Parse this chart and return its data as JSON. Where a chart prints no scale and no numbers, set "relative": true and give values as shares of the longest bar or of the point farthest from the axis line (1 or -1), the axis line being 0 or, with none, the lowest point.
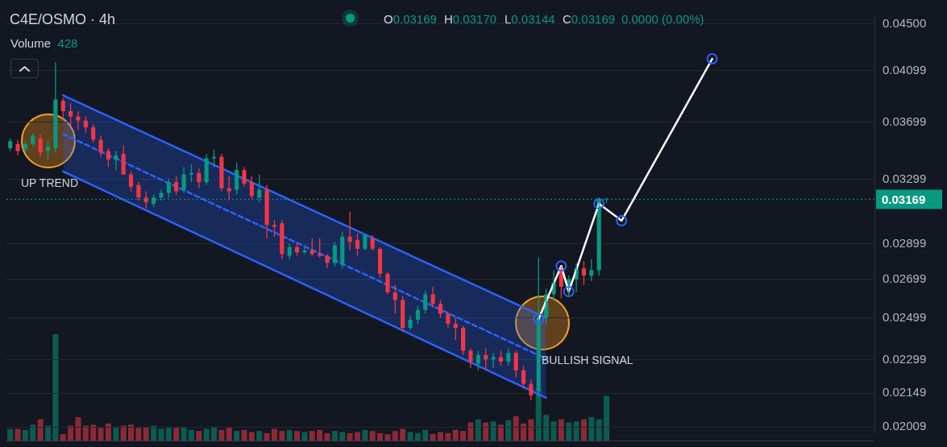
{
  "chart_data": [
    {
      "type": "candlestick",
      "title": "C4E/OSMO · 4h",
      "categories": [
        null,
        null,
        null,
        null,
        null,
        null,
        null,
        null,
        null,
        null,
        null,
        null,
        null,
        null,
        null,
        null,
        null,
        null,
        null,
        null,
        null,
        null,
        null,
        null,
        null,
        null,
        null,
        null,
        null,
        null,
        null,
        null,
        null,
        null,
        null,
        null,
        null,
        null,
        null,
        null,
        null,
        null,
        null,
        null,
        null,
        null,
        null,
        null,
        null,
        null,
        null,
        null,
        null,
        null,
        null,
        null,
        null,
        null,
        null,
        null,
        null,
        null,
        null,
        null,
        null,
        null,
        null,
        null,
        null,
        null,
        null,
        null,
        null,
        null,
        null,
        null,
        null,
        null,
        null,
        null,
        null,
        null,
        null,
        null,
        null,
        null,
        null,
        null,
        null,
        null,
        null,
        null,
        null,
        null,
        null,
        null,
        null,
        null,
        null,
        null,
        null,
        null,
        null,
        null,
        null,
        null,
        null,
        null,
        null,
        null,
        null,
        null,
        null,
        null,
        null
      ],
      "ohlc": [
        [
          0.0351,
          0.0358,
          0.0349,
          0.0356
        ],
        [
          0.0354,
          0.0357,
          0.0346,
          0.0349
        ],
        [
          0.035,
          0.0356,
          0.0348,
          0.0354
        ],
        [
          0.0354,
          0.0362,
          0.0352,
          0.036
        ],
        [
          0.0358,
          0.0361,
          0.0345,
          0.0348
        ],
        [
          0.0349,
          0.0356,
          0.0343,
          0.0352
        ],
        [
          0.0351,
          0.0417,
          0.0348,
          0.0387
        ],
        [
          0.0386,
          0.0388,
          0.0372,
          0.0378
        ],
        [
          0.0378,
          0.0384,
          0.0367,
          0.0374
        ],
        [
          0.0374,
          0.0378,
          0.0364,
          0.0371
        ],
        [
          0.0371,
          0.0374,
          0.0362,
          0.0366
        ],
        [
          0.0366,
          0.0368,
          0.0355,
          0.0357
        ],
        [
          0.0357,
          0.036,
          0.0345,
          0.0348
        ],
        [
          0.0349,
          0.0351,
          0.0338,
          0.0343
        ],
        [
          0.0343,
          0.0349,
          0.0336,
          0.0346
        ],
        [
          0.0347,
          0.0353,
          0.0333,
          0.0333
        ],
        [
          0.0333,
          0.0335,
          0.0322,
          0.0325
        ],
        [
          0.0326,
          0.0328,
          0.0316,
          0.0318
        ],
        [
          0.0318,
          0.0322,
          0.0311,
          0.0315
        ],
        [
          0.0314,
          0.032,
          0.0312,
          0.0318
        ],
        [
          0.0318,
          0.0323,
          0.0316,
          0.0321
        ],
        [
          0.0321,
          0.033,
          0.0318,
          0.0328
        ],
        [
          0.0328,
          0.0332,
          0.032,
          0.0322
        ],
        [
          0.0323,
          0.0338,
          0.0321,
          0.0333
        ],
        [
          0.0333,
          0.034,
          0.0328,
          0.0334
        ],
        [
          0.0334,
          0.0337,
          0.0324,
          0.0328
        ],
        [
          0.0328,
          0.0347,
          0.0326,
          0.0344
        ],
        [
          0.0344,
          0.035,
          0.0338,
          0.0345
        ],
        [
          0.0345,
          0.0347,
          0.0322,
          0.0324
        ],
        [
          0.0324,
          0.0332,
          0.0316,
          0.0322
        ],
        [
          0.0323,
          0.0341,
          0.032,
          0.0336
        ],
        [
          0.0336,
          0.0338,
          0.0325,
          0.0327
        ],
        [
          0.0328,
          0.0332,
          0.0317,
          0.0319
        ],
        [
          0.0318,
          0.0333,
          0.0315,
          0.0323
        ],
        [
          0.0323,
          0.0326,
          0.0293,
          0.0301
        ],
        [
          0.0301,
          0.0304,
          0.0294,
          0.03
        ],
        [
          0.0302,
          0.0304,
          0.0281,
          0.0284
        ],
        [
          0.0283,
          0.029,
          0.0281,
          0.0288
        ],
        [
          0.0288,
          0.029,
          0.0283,
          0.0285
        ],
        [
          0.0285,
          0.0288,
          0.0284,
          0.0286
        ],
        [
          0.0286,
          0.0293,
          0.0283,
          0.0284
        ],
        [
          0.0284,
          0.0293,
          0.0282,
          0.0283
        ],
        [
          0.0283,
          0.0284,
          0.0276,
          0.0279
        ],
        [
          0.0279,
          0.0291,
          0.0277,
          0.0289
        ],
        [
          0.0278,
          0.0297,
          0.0276,
          0.0294
        ],
        [
          0.0294,
          0.0309,
          0.0286,
          0.0291
        ],
        [
          0.0292,
          0.0296,
          0.0283,
          0.0287
        ],
        [
          0.0287,
          0.0296,
          0.0286,
          0.0295
        ],
        [
          0.0293,
          0.0295,
          0.0286,
          0.0287
        ],
        [
          0.0287,
          0.0288,
          0.0271,
          0.0273
        ],
        [
          0.0273,
          0.0274,
          0.0262,
          0.0263
        ],
        [
          0.0263,
          0.0267,
          0.0252,
          0.0259
        ],
        [
          0.0259,
          0.0261,
          0.0243,
          0.0245
        ],
        [
          0.0245,
          0.0251,
          0.0244,
          0.0249
        ],
        [
          0.0249,
          0.0256,
          0.0247,
          0.0254
        ],
        [
          0.0254,
          0.0264,
          0.0252,
          0.0262
        ],
        [
          0.0262,
          0.0266,
          0.0255,
          0.0257
        ],
        [
          0.0257,
          0.0259,
          0.025,
          0.0252
        ],
        [
          0.0252,
          0.0253,
          0.0245,
          0.0247
        ],
        [
          0.0247,
          0.025,
          0.0239,
          0.0245
        ],
        [
          0.0245,
          0.0246,
          0.0232,
          0.0234
        ],
        [
          0.0234,
          0.0235,
          0.0226,
          0.0229
        ],
        [
          0.0228,
          0.0234,
          0.0225,
          0.0232
        ],
        [
          0.0232,
          0.0235,
          0.0225,
          0.023
        ],
        [
          0.023,
          0.0233,
          0.0226,
          0.0231
        ],
        [
          0.0231,
          0.0234,
          0.0227,
          0.0229
        ],
        [
          0.0229,
          0.0235,
          0.0227,
          0.0233
        ],
        [
          0.0233,
          0.0234,
          0.0222,
          0.0225
        ],
        [
          0.0225,
          0.0227,
          0.0217,
          0.0219
        ],
        [
          0.0219,
          0.0221,
          0.0212,
          0.0214
        ],
        [
          0.0216,
          0.0282,
          0.0213,
          0.025
        ],
        [
          0.025,
          0.0265,
          0.0247,
          0.0262
        ],
        [
          0.0262,
          0.0275,
          0.0259,
          0.0268
        ],
        [
          0.0275,
          0.0277,
          0.026,
          0.0266
        ],
        [
          0.0266,
          0.0272,
          0.0261,
          0.027
        ],
        [
          0.027,
          0.0279,
          0.0263,
          0.0276
        ],
        [
          0.0276,
          0.028,
          0.0267,
          0.0272
        ],
        [
          0.0272,
          0.0281,
          0.0269,
          0.0275
        ],
        [
          0.0275,
          0.0318,
          0.0272,
          0.03169
        ],
        [
          0.03169,
          0.0317,
          0.03144,
          0.03169
        ],
        null,
        null,
        null,
        null,
        null,
        null,
        null,
        null,
        null,
        null,
        null,
        null,
        null,
        null,
        null,
        null,
        null,
        null,
        null,
        null,
        null,
        null,
        null,
        null,
        null,
        null,
        null,
        null,
        null,
        null,
        null,
        null,
        null,
        null,
        null
      ],
      "series": [
        {
          "type": "line",
          "color": "#2962ff",
          "values": [
            null,
            null,
            null,
            null,
            null,
            null,
            null,
            0.03902,
            null,
            null,
            null,
            null,
            null,
            null,
            null,
            null,
            null,
            null,
            null,
            null,
            null,
            null,
            null,
            null,
            null,
            null,
            null,
            null,
            null,
            null,
            null,
            null,
            null,
            null,
            null,
            null,
            null,
            null,
            null,
            null,
            null,
            null,
            null,
            null,
            null,
            null,
            null,
            null,
            null,
            null,
            null,
            null,
            null,
            null,
            null,
            null,
            null,
            null,
            null,
            null,
            null,
            null,
            null,
            null,
            null,
            null,
            null,
            null,
            null,
            null,
            null,
            0.02499,
            null,
            null,
            null,
            null,
            null,
            null,
            null,
            null,
            null,
            null,
            null,
            null,
            null,
            null,
            null,
            null,
            null,
            null,
            null,
            null,
            null,
            null,
            null,
            null,
            null,
            null,
            null,
            null,
            null,
            null,
            null,
            null,
            null,
            null,
            null,
            null,
            null,
            null,
            null,
            null,
            null,
            null,
            null
          ]
        },
        {
          "type": "line",
          "color": "#2962ff",
          "values": [
            null,
            null,
            null,
            null,
            null,
            null,
            null,
            0.03351,
            null,
            null,
            null,
            null,
            null,
            null,
            null,
            null,
            null,
            null,
            null,
            null,
            null,
            null,
            null,
            null,
            null,
            null,
            null,
            null,
            null,
            null,
            null,
            null,
            null,
            null,
            null,
            null,
            null,
            null,
            null,
            null,
            null,
            null,
            null,
            null,
            null,
            null,
            null,
            null,
            null,
            null,
            null,
            null,
            null,
            null,
            null,
            null,
            null,
            null,
            null,
            null,
            null,
            null,
            null,
            null,
            null,
            null,
            null,
            null,
            null,
            null,
            null,
            0.0213,
            null,
            null,
            null,
            null,
            null,
            null,
            null,
            null,
            null,
            null,
            null,
            null,
            null,
            null,
            null,
            null,
            null,
            null,
            null,
            null,
            null,
            null,
            null,
            null,
            null,
            null,
            null,
            null,
            null,
            null,
            null,
            null,
            null,
            null,
            null,
            null,
            null,
            null,
            null,
            null,
            null,
            null,
            null
          ]
        },
        {
          "type": "line",
          "color": "#2962ff",
          "line_style": "dashed",
          "values": [
            null,
            null,
            null,
            null,
            null,
            null,
            null,
            0.03611,
            null,
            null,
            null,
            null,
            null,
            null,
            null,
            null,
            null,
            null,
            null,
            null,
            null,
            null,
            null,
            null,
            null,
            null,
            null,
            null,
            null,
            null,
            null,
            null,
            null,
            null,
            null,
            null,
            null,
            null,
            null,
            null,
            null,
            null,
            null,
            null,
            null,
            null,
            null,
            null,
            null,
            null,
            null,
            null,
            null,
            null,
            null,
            null,
            null,
            null,
            null,
            null,
            null,
            null,
            null,
            null,
            null,
            null,
            null,
            null,
            null,
            null,
            null,
            0.02303,
            null,
            null,
            null,
            null,
            null,
            null,
            null,
            null,
            null,
            null,
            null,
            null,
            null,
            null,
            null,
            null,
            null,
            null,
            null,
            null,
            null,
            null,
            null,
            null,
            null,
            null,
            null,
            null,
            null,
            null,
            null,
            null,
            null,
            null,
            null,
            null,
            null,
            null,
            null,
            null,
            null,
            null,
            null
          ],
          "upper": [
            null,
            null,
            null,
            null,
            null,
            null,
            null,
            0.03902,
            null,
            null,
            null,
            null,
            null,
            null,
            null,
            null,
            null,
            null,
            null,
            null,
            null,
            null,
            null,
            null,
            null,
            null,
            null,
            null,
            null,
            null,
            null,
            null,
            null,
            null,
            null,
            null,
            null,
            null,
            null,
            null,
            null,
            null,
            null,
            null,
            null,
            null,
            null,
            null,
            null,
            null,
            null,
            null,
            null,
            null,
            null,
            null,
            null,
            null,
            null,
            null,
            null,
            null,
            null,
            null,
            null,
            null,
            null,
            null,
            null,
            null,
            null,
            0.02499,
            null,
            null,
            null,
            null,
            null,
            null,
            null,
            null,
            null,
            null,
            null,
            null,
            null,
            null,
            null,
            null,
            null,
            null,
            null,
            null,
            null,
            null,
            null,
            null,
            null,
            null,
            null,
            null,
            null,
            null,
            null,
            null,
            null,
            null,
            null,
            null,
            null,
            null,
            null,
            null,
            null,
            null,
            null
          ],
          "lower": [
            null,
            null,
            null,
            null,
            null,
            null,
            null,
            0.03351,
            null,
            null,
            null,
            null,
            null,
            null,
            null,
            null,
            null,
            null,
            null,
            null,
            null,
            null,
            null,
            null,
            null,
            null,
            null,
            null,
            null,
            null,
            null,
            null,
            null,
            null,
            null,
            null,
            null,
            null,
            null,
            null,
            null,
            null,
            null,
            null,
            null,
            null,
            null,
            null,
            null,
            null,
            null,
            null,
            null,
            null,
            null,
            null,
            null,
            null,
            null,
            null,
            null,
            null,
            null,
            null,
            null,
            null,
            null,
            null,
            null,
            null,
            null,
            0.0213,
            null,
            null,
            null,
            null,
            null,
            null,
            null,
            null,
            null,
            null,
            null,
            null,
            null,
            null,
            null,
            null,
            null,
            null,
            null,
            null,
            null,
            null,
            null,
            null,
            null,
            null,
            null,
            null,
            null,
            null,
            null,
            null,
            null,
            null,
            null,
            null,
            null,
            null,
            null,
            null,
            null,
            null,
            null
          ]
        },
        {
          "type": "line",
          "color": "#ffffff",
          "marker": "circle",
          "values": [
            null,
            null,
            null,
            null,
            null,
            null,
            null,
            null,
            null,
            null,
            null,
            null,
            null,
            null,
            null,
            null,
            null,
            null,
            null,
            null,
            null,
            null,
            null,
            null,
            null,
            null,
            null,
            null,
            null,
            null,
            null,
            null,
            null,
            null,
            null,
            null,
            null,
            null,
            null,
            null,
            null,
            null,
            null,
            null,
            null,
            null,
            null,
            null,
            null,
            null,
            null,
            null,
            null,
            null,
            null,
            null,
            null,
            null,
            null,
            null,
            null,
            null,
            null,
            null,
            null,
            null,
            null,
            null,
            null,
            null,
            0.02494,
            null,
            null,
            0.02773,
            0.02634,
            null,
            null,
            null,
            0.03141,
            null,
            null,
            0.03036,
            null,
            null,
            null,
            null,
            null,
            null,
            null,
            null,
            null,
            null,
            null,
            0.04198,
            null,
            null,
            null,
            null,
            null,
            null,
            null,
            null,
            null,
            null,
            null,
            null,
            null,
            null,
            null,
            null,
            null,
            null,
            null,
            null,
            null
          ]
        }
      ],
      "log": true,
      "ylim": [
        0.0199,
        0.0458
      ],
      "yticks": [
        {
          "value": 0.045,
          "label": "0.04500"
        },
        0.04099,
        0.03699,
        0.03299,
        0.02899,
        0.02699,
        0.02499,
        0.02299,
        0.02149,
        0.02009
      ],
      "tick_labels": "y",
      "grid": "y",
      "ref_lines": [
        {
          "axis": "y",
          "value": 0.03169,
          "label": "0.03169",
          "color": "#089981",
          "line_style": "dotted"
        }
      ],
      "annotations": [
        "O0.03169",
        "H0.03170",
        "L0.03144",
        "C0.03169",
        "0.0000 (0.00%)",
        "UP TREND",
        "BULLISH SIGNAL"
      ]
    },
    {
      "type": "bar",
      "relative": true,
      "tick_labels": false,
      "categories": [
        null,
        null,
        null,
        null,
        null,
        null,
        null,
        null,
        null,
        null,
        null,
        null,
        null,
        null,
        null,
        null,
        null,
        null,
        null,
        null,
        null,
        null,
        null,
        null,
        null,
        null,
        null,
        null,
        null,
        null,
        null,
        null,
        null,
        null,
        null,
        null,
        null,
        null,
        null,
        null,
        null,
        null,
        null,
        null,
        null,
        null,
        null,
        null,
        null,
        null,
        null,
        null,
        null,
        null,
        null,
        null,
        null,
        null,
        null,
        null,
        null,
        null,
        null,
        null,
        null,
        null,
        null,
        null,
        null,
        null,
        null,
        null,
        null,
        null,
        null,
        null,
        null,
        null,
        null,
        null,
        null,
        null,
        null,
        null,
        null,
        null,
        null,
        null,
        null,
        null,
        null,
        null,
        null,
        null,
        null,
        null,
        null,
        null,
        null,
        null,
        null,
        null,
        null,
        null,
        null,
        null,
        null,
        null,
        null,
        null,
        null,
        null,
        null,
        null,
        null
      ],
      "values": [
        0.11,
        0.11,
        0.1,
        0.15,
        0.2,
        0.14,
        1,
        0.06,
        0.14,
        0.22,
        0.14,
        0.15,
        0.12,
        0.16,
        0.13,
        0.14,
        0.15,
        0.12,
        0.13,
        0.14,
        0.11,
        0.12,
        0.12,
        0.13,
        0.1,
        0.09,
        0.11,
        0.13,
        0.1,
        0.12,
        0.09,
        0.1,
        0.08,
        0.09,
        0.07,
        0.11,
        0.09,
        0.1,
        0.09,
        0.08,
        0.09,
        0.1,
        0.07,
        0.09,
        0.08,
        0.07,
        0.08,
        0.1,
        0.09,
        0.07,
        0.06,
        0.09,
        0.11,
        0.08,
        0.07,
        0.1,
        0.06,
        0.08,
        0.07,
        0.1,
        0.09,
        0.17,
        0.2,
        0.17,
        0.18,
        0.15,
        0.19,
        0.23,
        0.16,
        0.2,
        0.49,
        0.24,
        0.18,
        0.2,
        0.17,
        0.18,
        0.2,
        0.22,
        0.2,
        0.42,
        null,
        null,
        null,
        null,
        null,
        null,
        null,
        null,
        null,
        null,
        null,
        null,
        null,
        null,
        null,
        null,
        null,
        null,
        null,
        null,
        null,
        null,
        null,
        null,
        null,
        null,
        null,
        null,
        null,
        null,
        null,
        null,
        null,
        null,
        null
      ],
      "colors": [
        "#0b5c50",
        "#8b2a36",
        "#0b5c50",
        "#0b5c50",
        "#8b2a36",
        "#0b5c50",
        "#0b5c50",
        "#8b2a36",
        "#8b2a36",
        "#8b2a36",
        "#8b2a36",
        "#8b2a36",
        "#8b2a36",
        "#8b2a36",
        "#0b5c50",
        "#8b2a36",
        "#8b2a36",
        "#8b2a36",
        "#8b2a36",
        "#0b5c50",
        "#0b5c50",
        "#0b5c50",
        "#8b2a36",
        "#0b5c50",
        "#0b5c50",
        "#8b2a36",
        "#0b5c50",
        "#0b5c50",
        "#8b2a36",
        "#8b2a36",
        "#0b5c50",
        "#8b2a36",
        "#8b2a36",
        "#0b5c50",
        "#8b2a36",
        "#8b2a36",
        "#8b2a36",
        "#0b5c50",
        "#8b2a36",
        "#0b5c50",
        "#8b2a36",
        "#8b2a36",
        "#8b2a36",
        "#0b5c50",
        "#0b5c50",
        "#8b2a36",
        "#8b2a36",
        "#0b5c50",
        "#8b2a36",
        "#8b2a36",
        "#8b2a36",
        "#8b2a36",
        "#8b2a36",
        "#0b5c50",
        "#0b5c50",
        "#0b5c50",
        "#8b2a36",
        "#8b2a36",
        "#8b2a36",
        "#8b2a36",
        "#8b2a36",
        "#8b2a36",
        "#0b5c50",
        "#8b2a36",
        "#0b5c50",
        "#8b2a36",
        "#0b5c50",
        "#8b2a36",
        "#8b2a36",
        "#8b2a36",
        "#0b5c50",
        "#0b5c50",
        "#0b5c50",
        "#8b2a36",
        "#0b5c50",
        "#0b5c50",
        "#8b2a36",
        "#0b5c50",
        "#0b5c50",
        "#0b5c50",
        null,
        null,
        null,
        null,
        null,
        null,
        null,
        null,
        null,
        null,
        null,
        null,
        null,
        null,
        null,
        null,
        null,
        null,
        null,
        null,
        null,
        null,
        null,
        null,
        null,
        null,
        null,
        null,
        null,
        null,
        null,
        null,
        null,
        null,
        null
      ],
      "annotations": [
        "Volume 428"
      ]
    }
  ]
}
